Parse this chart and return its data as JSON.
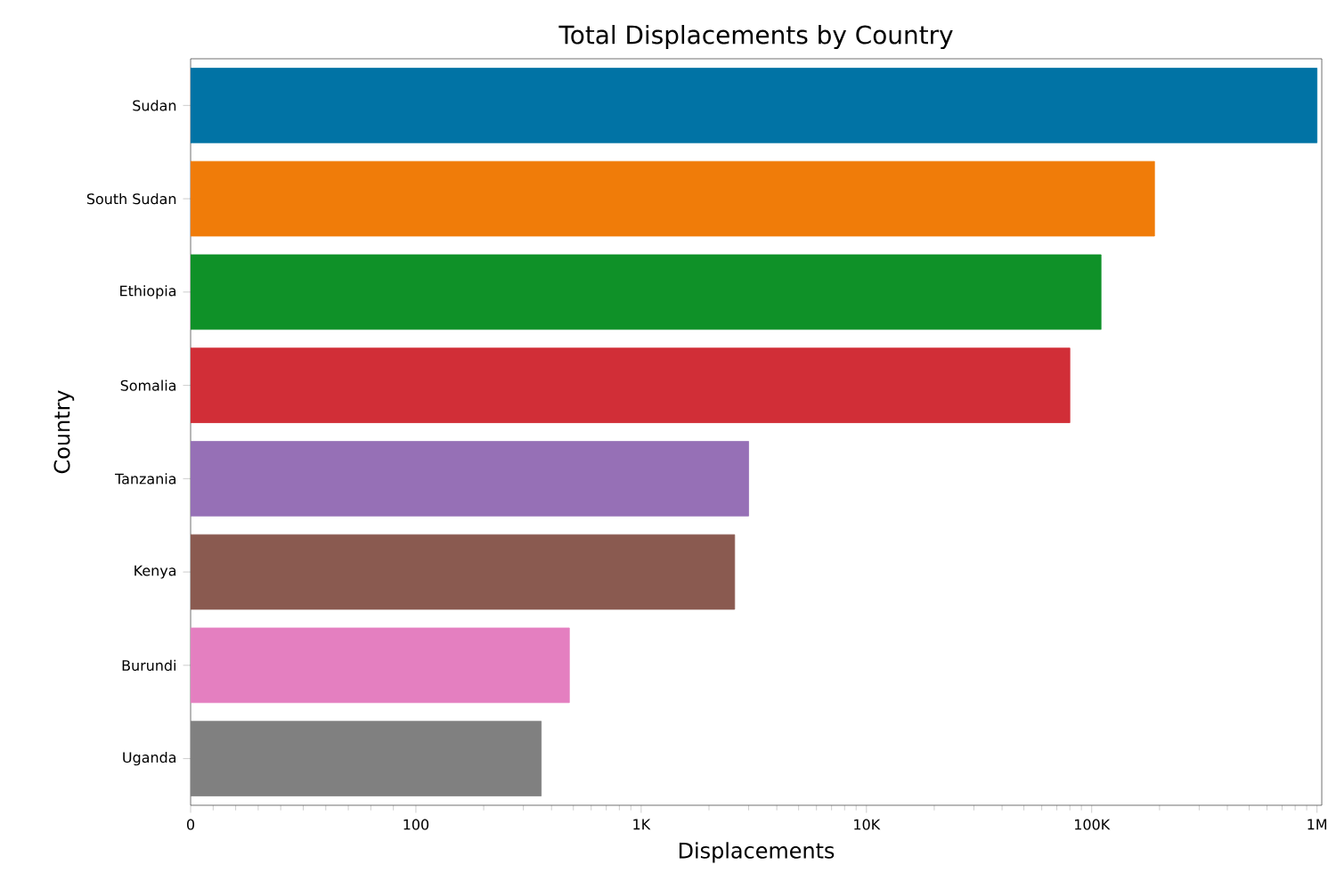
{
  "chart_data": {
    "type": "bar",
    "orientation": "horizontal",
    "title": "Total Displacements by Country",
    "xlabel": "Displacements",
    "ylabel": "Country",
    "categories": [
      "Sudan",
      "South Sudan",
      "Ethiopia",
      "Somalia",
      "Tanzania",
      "Kenya",
      "Burundi",
      "Uganda"
    ],
    "values": [
      1000000,
      190000,
      110000,
      80000,
      3000,
      2600,
      480,
      360
    ],
    "colors": [
      "#0173a5",
      "#f07c09",
      "#0f9128",
      "#d12e37",
      "#9670b6",
      "#8a5a50",
      "#e47fc0",
      "#808080"
    ],
    "log": "x",
    "xlim": [
      0,
      1050000
    ],
    "xticks": [
      0,
      100,
      {
        "value": 1000,
        "label": "1K"
      },
      {
        "value": 10000,
        "label": "10K"
      },
      {
        "value": 100000,
        "label": "100K"
      },
      {
        "value": 1000000,
        "label": "1M"
      }
    ]
  }
}
